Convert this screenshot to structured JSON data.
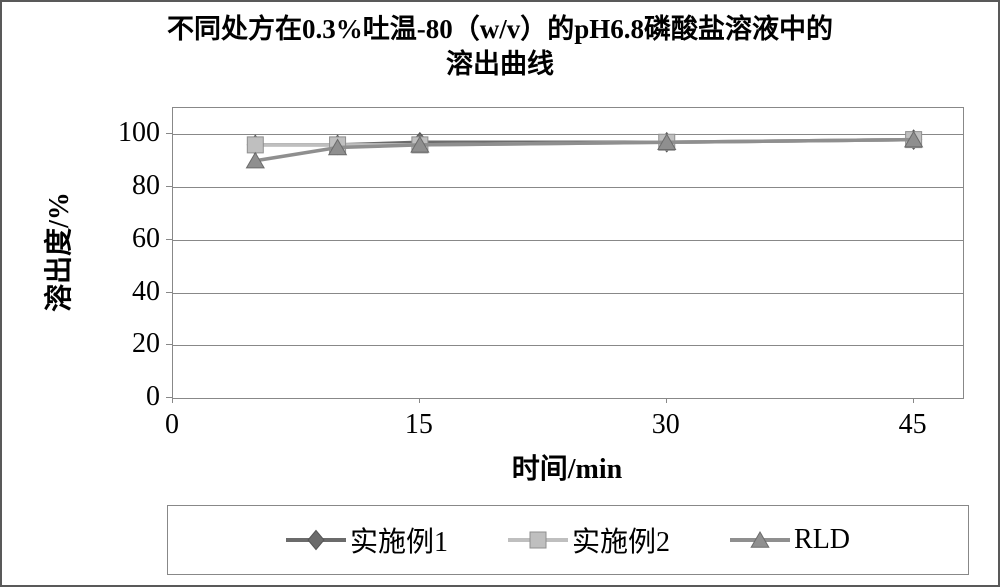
{
  "title_line1": "不同处方在0.3%吐温-80（w/v）的pH6.8磷酸盐溶液中的",
  "title_line2": "溶出曲线",
  "chart": {
    "type": "line",
    "xlabel": "时间/min",
    "ylabel": "溶出度/%",
    "xlim": [
      0,
      48
    ],
    "ylim": [
      0,
      110
    ],
    "ytick_step": 20,
    "ytick_max": 100,
    "xtick_values": [
      0,
      15,
      30,
      45
    ],
    "background_color": "#ffffff",
    "grid_color": "#888888",
    "border_color": "#595959",
    "line_width": 3.5,
    "marker_size": 16,
    "title_fontsize": 27,
    "label_fontsize": 28,
    "tick_fontsize": 28,
    "series": [
      {
        "name": "实施例1",
        "color": "#6b6b6b",
        "marker": "diamond",
        "x": [
          5,
          10,
          15,
          30,
          45
        ],
        "y": [
          96,
          96,
          97,
          97,
          98
        ]
      },
      {
        "name": "实施例2",
        "color": "#bfbfbf",
        "marker": "square",
        "x": [
          5,
          10,
          15,
          30,
          45
        ],
        "y": [
          96,
          96,
          96,
          97,
          98
        ]
      },
      {
        "name": "RLD",
        "color": "#8f8f8f",
        "marker": "triangle",
        "x": [
          5,
          10,
          15,
          30,
          45
        ],
        "y": [
          90,
          95,
          96,
          97,
          98
        ]
      }
    ]
  }
}
